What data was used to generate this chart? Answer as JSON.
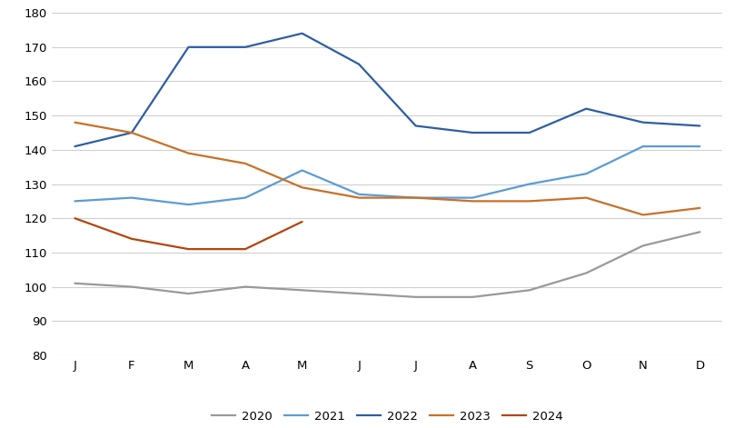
{
  "months": [
    "J",
    "F",
    "M",
    "A",
    "M",
    "J",
    "J",
    "A",
    "S",
    "O",
    "N",
    "D"
  ],
  "series_data": {
    "2020": [
      101,
      100,
      98,
      100,
      99,
      98,
      97,
      97,
      99,
      104,
      112,
      116
    ],
    "2021": [
      125,
      126,
      124,
      126,
      134,
      127,
      126,
      126,
      130,
      133,
      141,
      141
    ],
    "2022": [
      141,
      145,
      170,
      170,
      174,
      165,
      147,
      145,
      145,
      152,
      148,
      147
    ],
    "2023": [
      148,
      145,
      139,
      136,
      129,
      126,
      126,
      125,
      125,
      126,
      121,
      123
    ],
    "2024": [
      120,
      114,
      111,
      111,
      119,
      null,
      null,
      null,
      null,
      null,
      null,
      null
    ]
  },
  "colors": {
    "2020": "#999999",
    "2021": "#5b9bd5",
    "2022": "#2e5ea3",
    "2023": "#c87028",
    "2024": "#b5440d"
  },
  "ylim": [
    80,
    180
  ],
  "yticks": [
    80,
    90,
    100,
    110,
    120,
    130,
    140,
    150,
    160,
    170,
    180
  ],
  "background_color": "#ffffff",
  "grid_color": "#d0d0d0",
  "linewidth": 1.6
}
